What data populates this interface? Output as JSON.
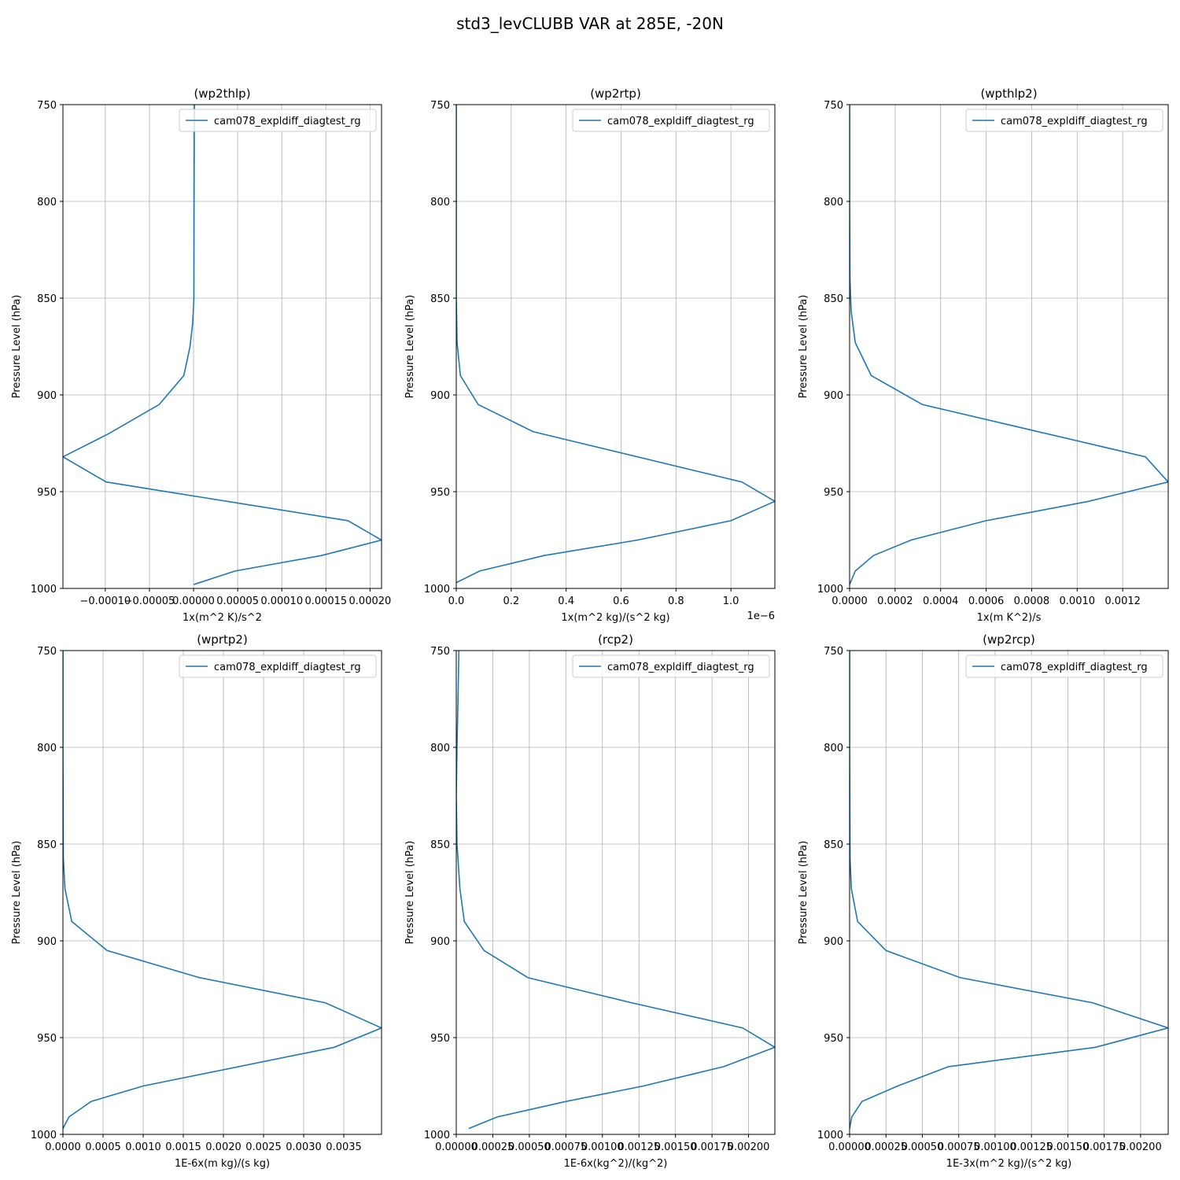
{
  "figure": {
    "title": "std3_levCLUBB VAR at 285E, -20N",
    "line_color": "#1f77b4",
    "grid_color": "#b0b0b0"
  },
  "chart_data": [
    {
      "type": "line",
      "title": "(wp2thlp)",
      "xlabel": "1x(m^2 K)/s^2",
      "ylabel": "Pressure Level (hPa)",
      "xlim": [
        -0.000148,
        0.000213
      ],
      "ylim": [
        1000,
        750
      ],
      "y_inverted": true,
      "grid": true,
      "legend_position": "upper right",
      "x_offset_label": "",
      "xticks": [
        -0.0001,
        -5e-05,
        0.0,
        5e-05,
        0.0001,
        0.00015,
        0.0002
      ],
      "xtick_labels": [
        "−0.00010",
        "−0.00005",
        "0.00000",
        "0.00005",
        "0.00010",
        "0.00015",
        "0.00020"
      ],
      "yticks": [
        750,
        800,
        850,
        900,
        950,
        1000
      ],
      "ytick_labels": [
        "750",
        "800",
        "850",
        "900",
        "950",
        "1000"
      ],
      "series": [
        {
          "name": "cam078_expldiff_diagtest_rg",
          "x": [
            1e-06,
            8e-07,
            6e-07,
            5e-07,
            4e-07,
            -1e-06,
            -4e-06,
            -1.1e-05,
            -3.9e-05,
            -9.6e-05,
            -0.000148,
            -9.9e-05,
            0.000175,
            0.000213,
            0.000145,
            4.7e-05,
            0.0
          ],
          "y": [
            750,
            775,
            800,
            825,
            850,
            863,
            875,
            890,
            905,
            920,
            932,
            945,
            965,
            975,
            983,
            991,
            998
          ]
        }
      ]
    },
    {
      "type": "line",
      "title": "(wp2rtp)",
      "xlabel": "1x(m^2 kg)/(s^2 kg)",
      "ylabel": "Pressure Level (hPa)",
      "xlim": [
        0.0,
        1.16e-06
      ],
      "ylim": [
        1000,
        750
      ],
      "y_inverted": true,
      "grid": true,
      "legend_position": "upper right",
      "x_offset_label": "1e−6",
      "xticks": [
        0.0,
        2e-07,
        4e-07,
        6e-07,
        8e-07,
        1e-06
      ],
      "xtick_labels": [
        "0.0",
        "0.2",
        "0.4",
        "0.6",
        "0.8",
        "1.0"
      ],
      "yticks": [
        750,
        800,
        850,
        900,
        950,
        1000
      ],
      "ytick_labels": [
        "750",
        "800",
        "850",
        "900",
        "950",
        "1000"
      ],
      "series": [
        {
          "name": "cam078_expldiff_diagtest_rg",
          "x": [
            0.0,
            0.0,
            0.0,
            3e-09,
            1.5e-08,
            8e-08,
            2.8e-07,
            1.04e-06,
            1.16e-06,
            1e-06,
            6.6e-07,
            3.2e-07,
            8.5e-08,
            0.0
          ],
          "y": [
            750,
            800,
            850,
            873,
            890,
            905,
            919,
            945,
            955,
            965,
            975,
            983,
            991,
            997
          ]
        }
      ]
    },
    {
      "type": "line",
      "title": "(wpthlp2)",
      "xlabel": "1x(m K^2)/s",
      "ylabel": "Pressure Level (hPa)",
      "xlim": [
        0.0,
        0.0014
      ],
      "ylim": [
        1000,
        750
      ],
      "y_inverted": true,
      "grid": true,
      "legend_position": "upper right",
      "x_offset_label": "",
      "xticks": [
        0.0,
        0.0002,
        0.0004,
        0.0006,
        0.0008,
        0.001,
        0.0012
      ],
      "xtick_labels": [
        "0.0000",
        "0.0002",
        "0.0004",
        "0.0006",
        "0.0008",
        "0.0010",
        "0.0012"
      ],
      "yticks": [
        750,
        800,
        850,
        900,
        950,
        1000
      ],
      "ytick_labels": [
        "750",
        "800",
        "850",
        "900",
        "950",
        "1000"
      ],
      "series": [
        {
          "name": "cam078_expldiff_diagtest_rg",
          "x": [
            0.0,
            0.0,
            1.5e-06,
            7e-06,
            2.5e-05,
            9.5e-05,
            0.00032,
            0.0013,
            0.0014,
            0.00105,
            0.0006,
            0.00027,
            0.000105,
            2.5e-05,
            0.0
          ],
          "y": [
            750,
            800,
            840,
            857,
            873,
            890,
            905,
            932,
            945,
            955,
            965,
            975,
            983,
            991,
            998
          ]
        }
      ]
    },
    {
      "type": "line",
      "title": "(wprtp2)",
      "xlabel": "1E-6x(m kg)/(s kg)",
      "ylabel": "Pressure Level (hPa)",
      "xlim": [
        0.0,
        0.00397
      ],
      "ylim": [
        1000,
        750
      ],
      "y_inverted": true,
      "grid": true,
      "legend_position": "upper right",
      "x_offset_label": "",
      "xticks": [
        0.0,
        0.0005,
        0.001,
        0.0015,
        0.002,
        0.0025,
        0.003,
        0.0035
      ],
      "xtick_labels": [
        "0.0000",
        "0.0005",
        "0.0010",
        "0.0015",
        "0.0020",
        "0.0025",
        "0.0030",
        "0.0035"
      ],
      "yticks": [
        750,
        800,
        850,
        900,
        950,
        1000
      ],
      "ytick_labels": [
        "750",
        "800",
        "850",
        "900",
        "950",
        "1000"
      ],
      "series": [
        {
          "name": "cam078_expldiff_diagtest_rg",
          "x": [
            0.0,
            0.0,
            5e-06,
            2.5e-05,
            0.00011,
            0.00055,
            0.0017,
            0.00327,
            0.00397,
            0.00338,
            0.001,
            0.00035,
            7.5e-05,
            0.0
          ],
          "y": [
            750,
            800,
            857,
            873,
            890,
            905,
            919,
            932,
            945,
            955,
            975,
            983,
            991,
            997
          ]
        }
      ]
    },
    {
      "type": "line",
      "title": "(rcp2)",
      "xlabel": "1E-6x(kg^2)/(kg^2)",
      "ylabel": "Pressure Level (hPa)",
      "xlim": [
        0.0,
        0.00218
      ],
      "ylim": [
        1000,
        750
      ],
      "y_inverted": true,
      "grid": true,
      "legend_position": "upper right",
      "x_offset_label": "",
      "xticks": [
        0.0,
        0.00025,
        0.0005,
        0.00075,
        0.001,
        0.00125,
        0.0015,
        0.00175,
        0.002
      ],
      "xtick_labels": [
        "0.00000",
        "0.00025",
        "0.00050",
        "0.00075",
        "0.00100",
        "0.00125",
        "0.00150",
        "0.00175",
        "0.00200"
      ],
      "yticks": [
        750,
        800,
        850,
        900,
        950,
        1000
      ],
      "ytick_labels": [
        "750",
        "800",
        "850",
        "900",
        "950",
        "1000"
      ],
      "series": [
        {
          "name": "cam078_expldiff_diagtest_rg",
          "x": [
            1.8e-05,
            1.2e-05,
            5e-06,
            0.0,
            5e-06,
            2.5e-05,
            5.5e-05,
            0.00019,
            0.00049,
            0.0012,
            0.00196,
            0.00218,
            0.00183,
            0.00128,
            0.00075,
            0.00028,
            8.5e-05
          ],
          "y": [
            750,
            775,
            800,
            825,
            850,
            873,
            890,
            905,
            919,
            932,
            945,
            955,
            965,
            975,
            983,
            991,
            997
          ]
        }
      ]
    },
    {
      "type": "line",
      "title": "(wp2rcp)",
      "xlabel": "1E-3x(m^2 kg)/(s^2 kg)",
      "ylabel": "Pressure Level (hPa)",
      "xlim": [
        0.0,
        0.00219
      ],
      "ylim": [
        1000,
        750
      ],
      "y_inverted": true,
      "grid": true,
      "legend_position": "upper right",
      "x_offset_label": "",
      "xticks": [
        0.0,
        0.00025,
        0.0005,
        0.00075,
        0.001,
        0.00125,
        0.0015,
        0.00175,
        0.002
      ],
      "xtick_labels": [
        "0.00000",
        "0.00025",
        "0.00050",
        "0.00075",
        "0.00100",
        "0.00125",
        "0.00150",
        "0.00175",
        "0.00200"
      ],
      "yticks": [
        750,
        800,
        850,
        900,
        950,
        1000
      ],
      "ytick_labels": [
        "750",
        "800",
        "850",
        "900",
        "950",
        "1000"
      ],
      "series": [
        {
          "name": "cam078_expldiff_diagtest_rg",
          "x": [
            0.0,
            0.0,
            3e-06,
            1.2e-05,
            5.5e-05,
            0.00025,
            0.00076,
            0.00167,
            0.00219,
            0.00169,
            0.00068,
            0.00033,
            8.5e-05,
            1.5e-05,
            0.0
          ],
          "y": [
            750,
            800,
            857,
            873,
            890,
            905,
            919,
            932,
            945,
            955,
            965,
            975,
            983,
            991,
            997
          ]
        }
      ]
    }
  ]
}
